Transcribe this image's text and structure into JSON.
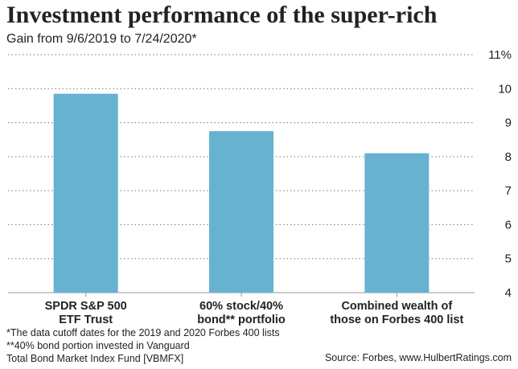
{
  "title": "Investment performance of the super-rich",
  "subtitle": "Gain from 9/6/2019 to 7/24/2020*",
  "footnotes": [
    "*The data cutoff dates for the 2019 and 2020 Forbes 400 lists",
    "**40% bond portion invested in Vanguard",
    "Total Bond Market Index Fund [VBMFX]"
  ],
  "source": "Source: Forbes, www.HulbertRatings.com",
  "colors": {
    "bar": "#67b2d0",
    "grid": "#777777",
    "axis": "#999999",
    "text": "#222222"
  },
  "chart_data": {
    "type": "bar",
    "title": "Investment performance of the super-rich",
    "subtitle": "Gain from 9/6/2019 to 7/24/2020*",
    "categories": [
      [
        "SPDR S&P 500",
        "ETF Trust"
      ],
      [
        "60% stock/40%",
        "bond** portfolio"
      ],
      [
        "Combined wealth of",
        "those on Forbes 400 list"
      ]
    ],
    "values": [
      9.85,
      8.75,
      8.1
    ],
    "ylim": [
      4,
      11
    ],
    "yticks": [
      4,
      5,
      6,
      7,
      8,
      9,
      10,
      11
    ],
    "ytick_labels": [
      "4",
      "5",
      "6",
      "7",
      "8",
      "9",
      "10",
      "11%"
    ],
    "y_axis_side": "right",
    "grid": "dotted horizontal",
    "legend": "none"
  }
}
